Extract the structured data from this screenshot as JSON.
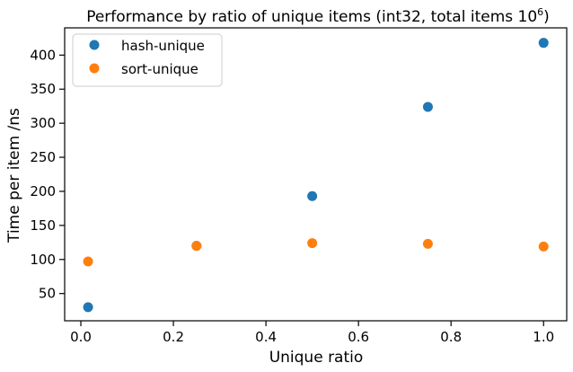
{
  "chart_data": {
    "type": "scatter",
    "title": "Performance by ratio of unique items (int32, total items 10",
    "title_superscript": "6",
    "title_suffix": ")",
    "xlabel": "Unique ratio",
    "ylabel": "Time per item /ns",
    "xlim": [
      -0.035,
      1.05
    ],
    "ylim": [
      10,
      440
    ],
    "xticks": [
      0.0,
      0.2,
      0.4,
      0.6,
      0.8,
      1.0
    ],
    "xtick_labels": [
      "0.0",
      "0.2",
      "0.4",
      "0.6",
      "0.8",
      "1.0"
    ],
    "yticks": [
      50,
      100,
      150,
      200,
      250,
      300,
      350,
      400
    ],
    "ytick_labels": [
      "50",
      "100",
      "150",
      "200",
      "250",
      "300",
      "350",
      "400"
    ],
    "grid": false,
    "legend_position": "top-left",
    "series": [
      {
        "name": "hash-unique",
        "color": "#1f77b4",
        "x": [
          0.015625,
          0.25,
          0.5,
          0.75,
          1.0
        ],
        "y": [
          30,
          120,
          193,
          324,
          418
        ]
      },
      {
        "name": "sort-unique",
        "color": "#ff7f0e",
        "x": [
          0.015625,
          0.25,
          0.5,
          0.75,
          1.0
        ],
        "y": [
          97,
          120,
          124,
          123,
          119
        ]
      }
    ]
  }
}
